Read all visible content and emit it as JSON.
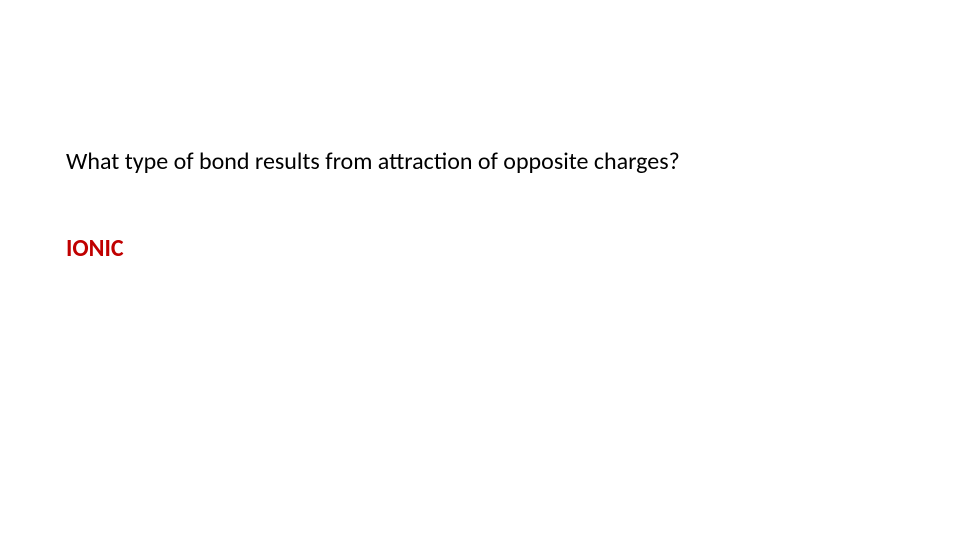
{
  "slide": {
    "question": "What type of bond results from attraction of opposite charges?",
    "answer": "IONIC",
    "question_color": "#000000",
    "answer_color": "#c00000",
    "background_color": "#ffffff",
    "question_fontsize": 24,
    "answer_fontsize": 24,
    "answer_fontweight": 700,
    "question_fontweight": 400
  }
}
